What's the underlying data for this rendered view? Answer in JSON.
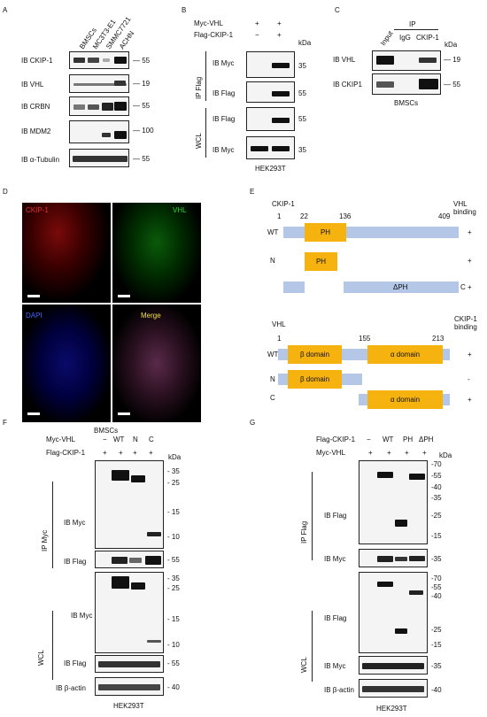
{
  "A": {
    "letter": "A",
    "columns": [
      "BMSCs",
      "MC3T3-E1",
      "SMMC7721",
      "ACHN"
    ],
    "rows": [
      {
        "label": "IB CKIP-1",
        "mw": "55"
      },
      {
        "label": "IB VHL",
        "mw": "19"
      },
      {
        "label": "IB CRBN",
        "mw": "55"
      },
      {
        "label": "IB MDM2",
        "mw": "100"
      },
      {
        "label": "IB α-Tubulin",
        "mw": "55"
      }
    ]
  },
  "B": {
    "letter": "B",
    "conditions": [
      {
        "label": "Myc-VHL",
        "signs": [
          "+",
          "+"
        ]
      },
      {
        "label": "Flag-CKIP-1",
        "signs": [
          "−",
          "+"
        ]
      }
    ],
    "kda": "kDa",
    "group_ip": "IP Flag",
    "group_wcl": "WCL",
    "rows": [
      {
        "label": "IB Myc",
        "mw": "35"
      },
      {
        "label": "IB Flag",
        "mw": "55"
      },
      {
        "label": "IB Flag",
        "mw": "55"
      },
      {
        "label": "IB Myc",
        "mw": "35"
      }
    ],
    "cell": "HEK293T"
  },
  "C": {
    "letter": "C",
    "ip": "IP",
    "columns": [
      "Input",
      "IgG",
      "CKIP-1"
    ],
    "kda": "kDa",
    "rows": [
      {
        "label": "IB VHL",
        "mw": "19"
      },
      {
        "label": "IB CKIP1",
        "mw": "55"
      }
    ],
    "cell": "BMSCs"
  },
  "D": {
    "letter": "D",
    "panels": [
      "CKIP-1",
      "VHL",
      "DAPI",
      "Merge"
    ],
    "cell": "BMSCs"
  },
  "E": {
    "letter": "E",
    "ckip": {
      "title": "CKIP-1",
      "right_title": [
        "VHL",
        "binding"
      ],
      "positions": [
        "1",
        "22",
        "136",
        "409"
      ],
      "rows": [
        {
          "label": "WT",
          "domain": "PH",
          "result": "+"
        },
        {
          "label": "N",
          "domain": "PH",
          "result": "+"
        },
        {
          "label": "C",
          "domain": "ΔPH",
          "result": "+"
        }
      ]
    },
    "vhl": {
      "title": "VHL",
      "right_title": [
        "CKIP-1",
        "binding"
      ],
      "positions": [
        "1",
        "155",
        "213"
      ],
      "rows": [
        {
          "label": "WT",
          "domains": [
            "β domain",
            "α domain"
          ],
          "result": "+"
        },
        {
          "label": "N",
          "domains": [
            "β domain"
          ],
          "result": "-"
        },
        {
          "label": "C",
          "domains": [
            "α domain"
          ],
          "result": "+"
        }
      ]
    }
  },
  "F": {
    "letter": "F",
    "conditions": [
      {
        "label": "Myc-VHL",
        "signs": [
          "−",
          "WT",
          "N",
          "C"
        ]
      },
      {
        "label": "Flag-CKIP-1",
        "signs": [
          "+",
          "+",
          "+",
          "+"
        ]
      }
    ],
    "kda": "kDa",
    "group_ip": "IP Myc",
    "group_wcl": "WCL",
    "ip_myc": {
      "label": "IB Myc",
      "mws": [
        "35",
        "25",
        "15",
        "10"
      ]
    },
    "ip_flag": {
      "label": "IB Flag",
      "mw": "55"
    },
    "wcl_myc": {
      "label": "IB Myc",
      "mws": [
        "35",
        "25",
        "15",
        "10"
      ]
    },
    "wcl_flag": {
      "label": "IB Flag",
      "mw": "55"
    },
    "actin": {
      "label": "IB β-actin",
      "mw": "40"
    },
    "cell": "HEK293T"
  },
  "G": {
    "letter": "G",
    "conditions": [
      {
        "label": "Flag-CKIP-1",
        "signs": [
          "−",
          "WT",
          "PH",
          "ΔPH"
        ]
      },
      {
        "label": "Myc-VHL",
        "signs": [
          "+",
          "+",
          "+",
          "+"
        ]
      }
    ],
    "kda": "kDa",
    "group_ip": "IP Flag",
    "group_wcl": "WCL",
    "ip_flag": {
      "label": "IB Flag",
      "mws": [
        "70",
        "55",
        "40",
        "35",
        "25",
        "15"
      ]
    },
    "ip_myc": {
      "label": "IB Myc",
      "mw": "35"
    },
    "wcl_flag": {
      "label": "IB Flag",
      "mws": [
        "70",
        "55",
        "40",
        "25",
        "15"
      ]
    },
    "wcl_myc": {
      "label": "IB Myc",
      "mw": "35"
    },
    "actin": {
      "label": "IB β-actin",
      "mw": "40"
    },
    "cell": "HEK293T"
  }
}
